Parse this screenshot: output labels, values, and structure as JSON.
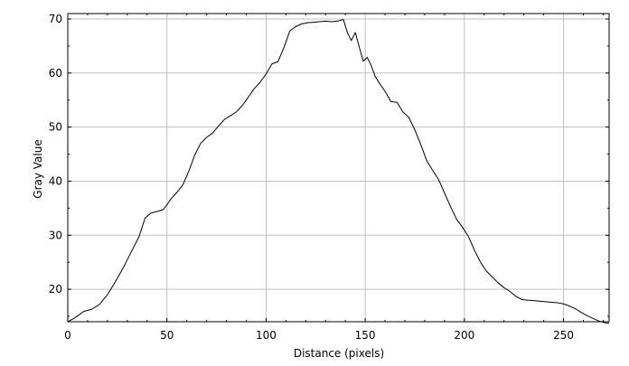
{
  "chart_data": {
    "type": "line",
    "xlabel": "Distance (pixels)",
    "ylabel": "Gray Value",
    "xlim": [
      0,
      273
    ],
    "ylim": [
      14,
      71
    ],
    "xticks": [
      0,
      50,
      100,
      150,
      200,
      250
    ],
    "yticks": [
      20,
      30,
      40,
      50,
      60,
      70
    ],
    "grid": true,
    "line_color": "#000000",
    "grid_color": "#c0c0c0",
    "series": [
      {
        "x": [
          0,
          3,
          5,
          8,
          12,
          16,
          20,
          24,
          28,
          32,
          36,
          39,
          42,
          45,
          48,
          50,
          52,
          55,
          58,
          61,
          64,
          67,
          70,
          73,
          76,
          79,
          82,
          85,
          88,
          91,
          94,
          97,
          100,
          103,
          106,
          109,
          112,
          115,
          118,
          121,
          124,
          127,
          130,
          133,
          136,
          139,
          141,
          143,
          145,
          147,
          149,
          151,
          153,
          155,
          157,
          160,
          163,
          166,
          169,
          172,
          175,
          178,
          181,
          184,
          187,
          190,
          193,
          196,
          199,
          202,
          205,
          208,
          211,
          214,
          217,
          220,
          223,
          226,
          229,
          232,
          235,
          238,
          241,
          244,
          247,
          250,
          253,
          256,
          259,
          262,
          265,
          268,
          271,
          273
        ],
        "y": [
          14,
          14.6,
          15.1,
          15.9,
          16.3,
          17.2,
          19,
          21.4,
          24,
          26.9,
          29.8,
          33.2,
          34.1,
          34.4,
          34.7,
          35.6,
          36.7,
          37.9,
          39.3,
          41.8,
          44.8,
          47,
          48.1,
          48.9,
          50.2,
          51.4,
          52.1,
          52.8,
          54,
          55.5,
          57.1,
          58.3,
          59.8,
          61.7,
          62.1,
          64.7,
          67.8,
          68.6,
          69.1,
          69.3,
          69.4,
          69.5,
          69.6,
          69.5,
          69.6,
          69.9,
          67.5,
          66,
          67.5,
          64.8,
          62.2,
          62.9,
          61.4,
          59.4,
          58.2,
          56.6,
          54.7,
          54.6,
          52.8,
          51.8,
          49.5,
          46.8,
          43.8,
          42,
          40.3,
          37.8,
          35.3,
          33,
          31.5,
          29.8,
          27.3,
          25.1,
          23.4,
          22.3,
          21.2,
          20.3,
          19.6,
          18.7,
          18.1,
          18,
          17.9,
          17.8,
          17.7,
          17.6,
          17.5,
          17.3,
          16.9,
          16.4,
          15.7,
          15.1,
          14.6,
          14.1,
          13.8,
          13.7
        ]
      }
    ]
  }
}
